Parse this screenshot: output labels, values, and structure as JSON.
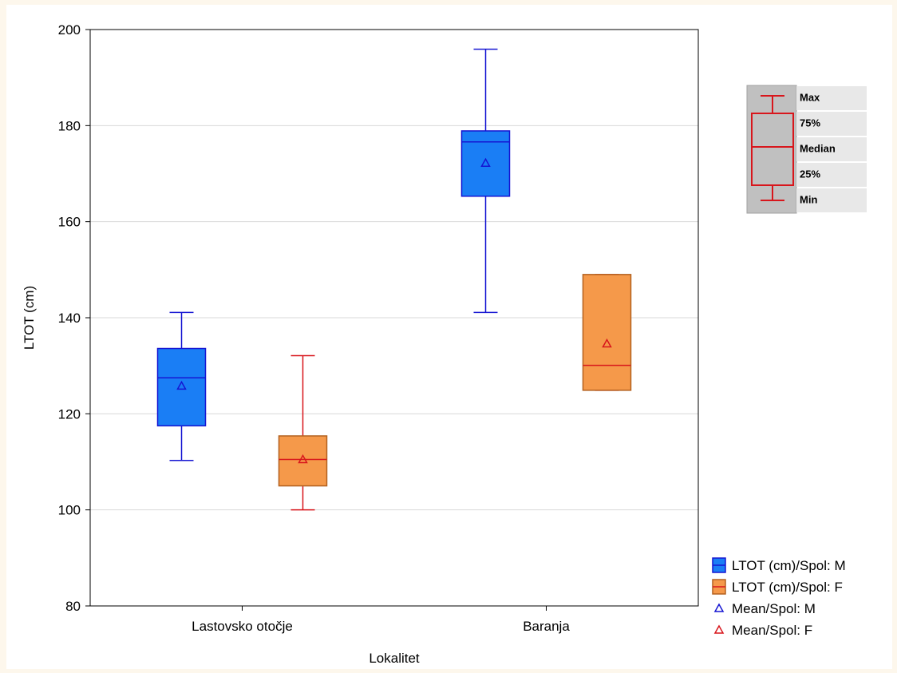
{
  "chart_data": {
    "type": "box",
    "xlabel": "Lokalitet",
    "ylabel": "LTOT (cm)",
    "ylim": [
      80,
      200
    ],
    "yticks": [
      80,
      100,
      120,
      140,
      160,
      180,
      200
    ],
    "grid": true,
    "categories": [
      "Lastovsko otočje",
      "Baranja"
    ],
    "series": [
      {
        "name": "LTOT (cm)/Spol: M",
        "mean_name": "Mean/Spol: M",
        "color": "#1a7ef5",
        "line_color": "#1515d2",
        "boxes": [
          {
            "min": 110.3,
            "q1": 117.5,
            "median": 127.5,
            "q3": 133.6,
            "max": 141.1,
            "mean": 125.8
          },
          {
            "min": 141.1,
            "q1": 165.3,
            "median": 176.6,
            "q3": 178.9,
            "max": 195.9,
            "mean": 172.2
          }
        ]
      },
      {
        "name": "LTOT (cm)/Spol: F",
        "mean_name": "Mean/Spol: F",
        "color": "#f5994a",
        "line_color": "#d8161c",
        "box_edge": "#b3611f",
        "boxes": [
          {
            "min": 100.0,
            "q1": 105.0,
            "median": 110.5,
            "q3": 115.4,
            "max": 132.1,
            "mean": 110.5
          },
          {
            "min": 124.9,
            "q1": 124.9,
            "median": 130.1,
            "q3": 149.0,
            "max": 149.0,
            "mean": 134.6
          }
        ]
      }
    ],
    "box_key": [
      "Max",
      "75%",
      "Median",
      "25%",
      "Min"
    ],
    "legend_position": "bottom-right"
  }
}
